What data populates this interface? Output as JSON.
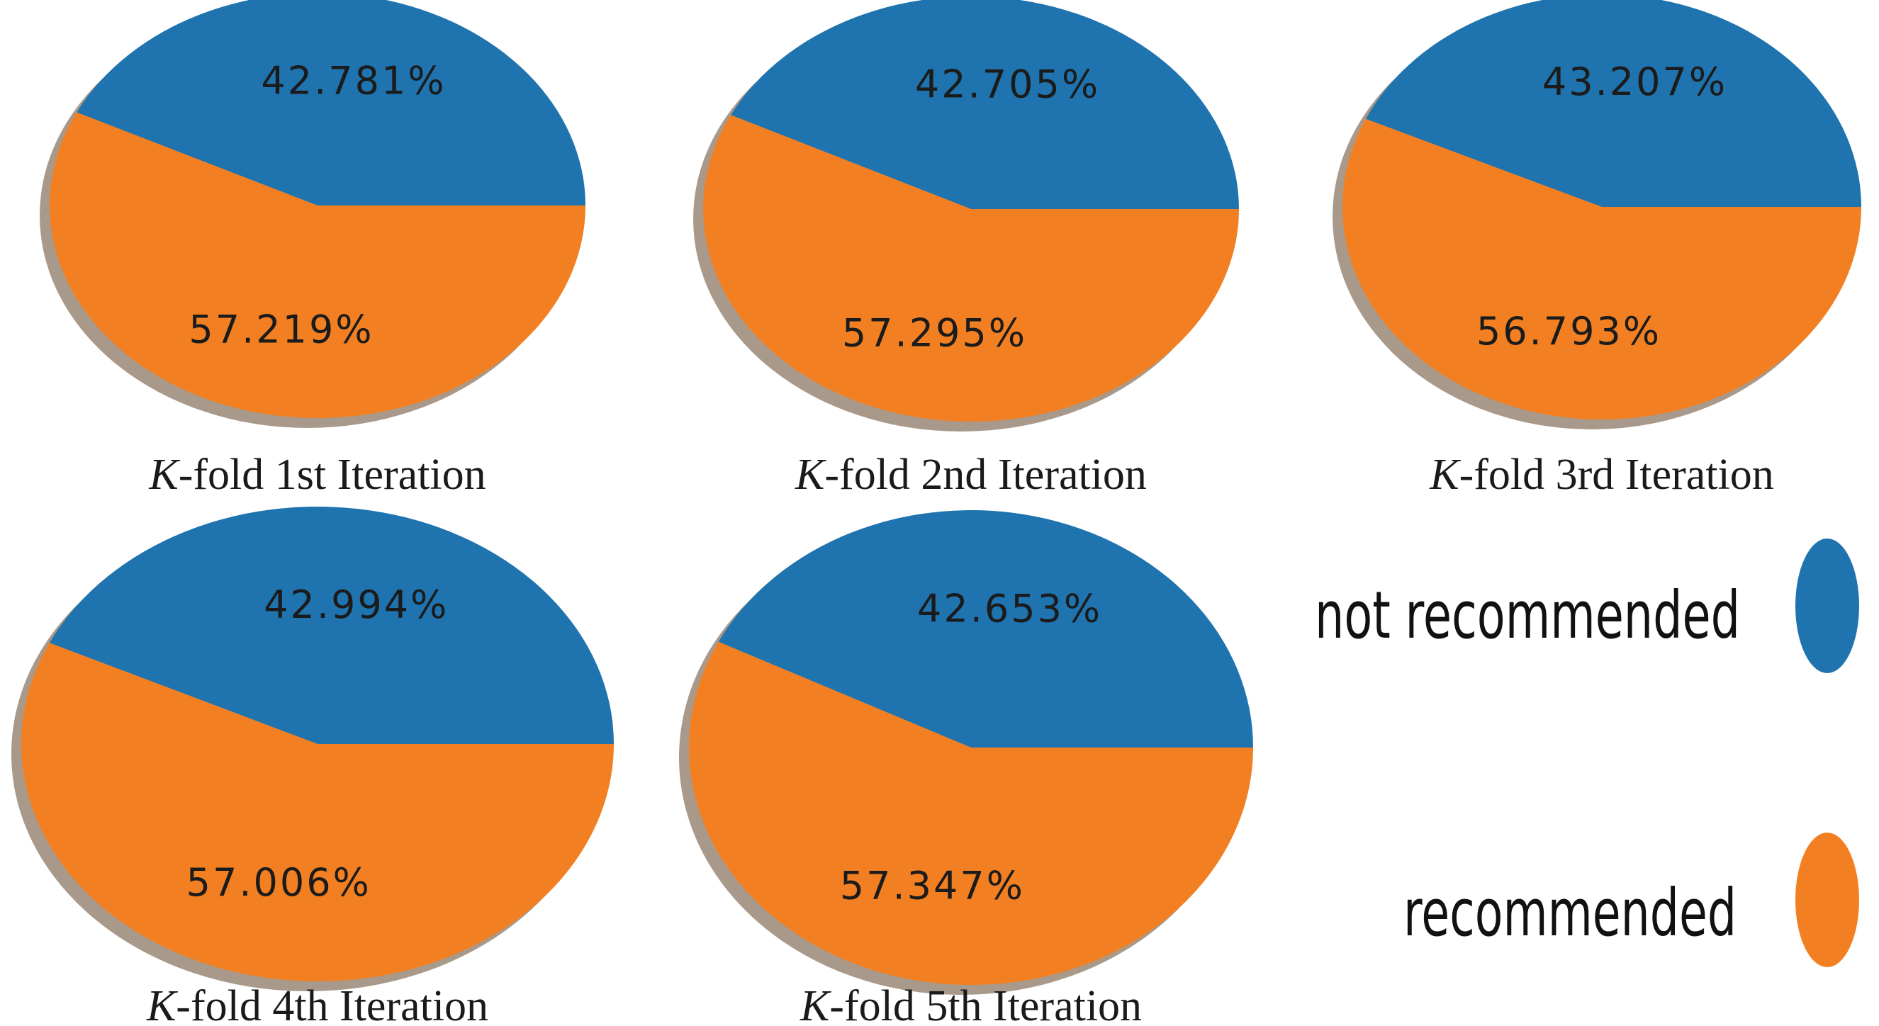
{
  "colors": {
    "not_recommended": "#1f73ae",
    "recommended": "#f28022",
    "shadow": "#a9998a",
    "background": "#ffffff"
  },
  "chart_data": [
    {
      "type": "pie",
      "caption_prefix": "K",
      "caption_rest": "-fold 1st Iteration",
      "labels": [
        "not recommended",
        "recommended"
      ],
      "values": [
        42.781,
        57.219
      ],
      "value_labels": [
        "42.781%",
        "57.219%"
      ]
    },
    {
      "type": "pie",
      "caption_prefix": "K",
      "caption_rest": "-fold 2nd Iteration",
      "labels": [
        "not recommended",
        "recommended"
      ],
      "values": [
        42.705,
        57.295
      ],
      "value_labels": [
        "42.705%",
        "57.295%"
      ]
    },
    {
      "type": "pie",
      "caption_prefix": "K",
      "caption_rest": "-fold 3rd Iteration",
      "labels": [
        "not recommended",
        "recommended"
      ],
      "values": [
        43.207,
        56.793
      ],
      "value_labels": [
        "43.207%",
        "56.793%"
      ]
    },
    {
      "type": "pie",
      "caption_prefix": "K",
      "caption_rest": "-fold 4th Iteration",
      "labels": [
        "not recommended",
        "recommended"
      ],
      "values": [
        42.994,
        57.006
      ],
      "value_labels": [
        "42.994%",
        "57.006%"
      ]
    },
    {
      "type": "pie",
      "caption_prefix": "K",
      "caption_rest": "-fold 5th Iteration",
      "labels": [
        "not recommended",
        "recommended"
      ],
      "values": [
        42.653,
        57.347
      ],
      "value_labels": [
        "42.653%",
        "57.347%"
      ]
    }
  ],
  "legend": {
    "placement": "right",
    "items": [
      {
        "label": "not recommended",
        "color": "#1f73ae"
      },
      {
        "label": "recommended",
        "color": "#f28022"
      }
    ]
  }
}
